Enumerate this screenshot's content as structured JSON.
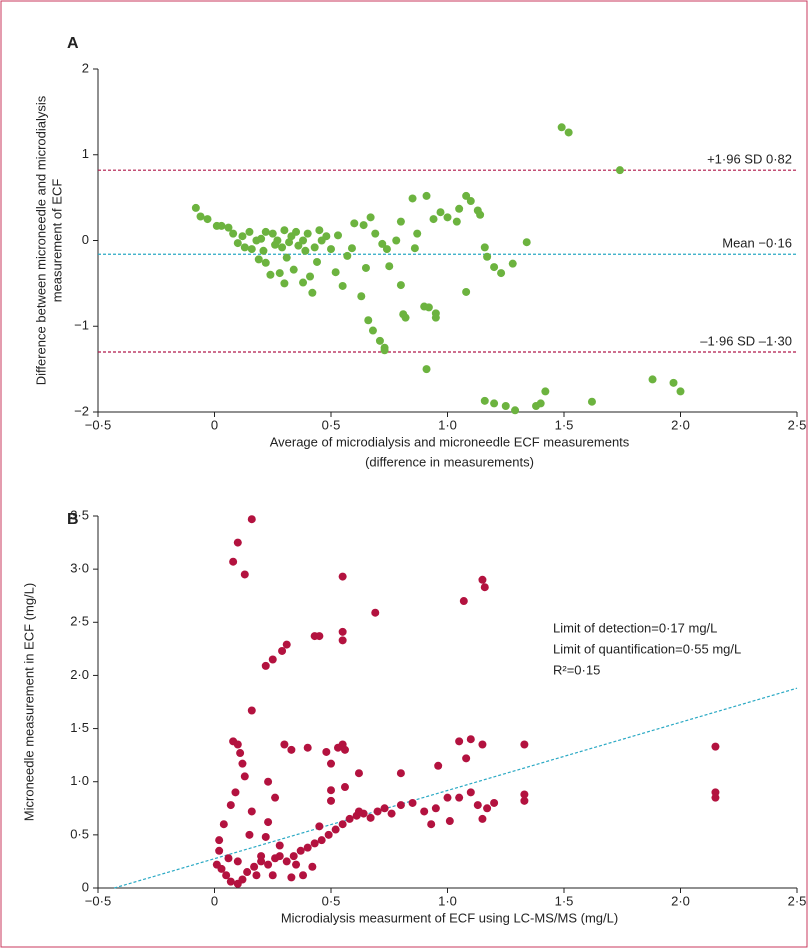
{
  "chart_data": [
    {
      "type": "scatter",
      "panel": "A",
      "x_label": [
        "Average of microdialysis and microneedle ECF measurements",
        "(difference in measurements)"
      ],
      "y_label": [
        "Difference between microneedle and microdialysis",
        "measurement of ECF"
      ],
      "xlim": [
        -0.5,
        2.5
      ],
      "ylim": [
        -2,
        2
      ],
      "xticks": [
        {
          "value": -0.5,
          "label": "−0·5"
        },
        0,
        {
          "value": 0.5,
          "label": "0·5"
        },
        {
          "value": 1,
          "label": "1·0"
        },
        {
          "value": 1.5,
          "label": "1·5"
        },
        {
          "value": 2,
          "label": "2·0"
        },
        {
          "value": 2.5,
          "label": "2·5"
        }
      ],
      "yticks": [
        {
          "value": -2,
          "label": "−2"
        },
        {
          "value": -1,
          "label": "−1"
        },
        0,
        1,
        2
      ],
      "color": "#6cb33f",
      "hlines": [
        {
          "value": 0.82,
          "label": "+1·96 SD 0·82",
          "color": "#b0174a"
        },
        {
          "value": -0.16,
          "label": "Mean −0·16",
          "color": "#2aa9c4"
        },
        {
          "value": -1.3,
          "label": "–1·96 SD –1·30",
          "color": "#b0174a"
        }
      ],
      "x": [
        1.49,
        1.52,
        1.74,
        1.16,
        1.2,
        1.25,
        1.29,
        1.38,
        1.4,
        1.42,
        1.62,
        1.88,
        1.97,
        2.0,
        0.91,
        0.73,
        0.73,
        0.66,
        0.68,
        0.71,
        0.82,
        0.81,
        0.9,
        0.92,
        0.95,
        0.95,
        1.17,
        1.16,
        1.2,
        1.23,
        1.28,
        1.34,
        1.08,
        1.1,
        1.14,
        1.05,
        1.04,
        1.0,
        0.97,
        0.94,
        0.91,
        0.85,
        0.87,
        0.86,
        0.8,
        0.78,
        0.74,
        0.72,
        0.8,
        0.75,
        0.69,
        0.67,
        0.65,
        0.63,
        0.57,
        0.59,
        0.55,
        0.52,
        0.5,
        0.46,
        0.44,
        0.42,
        0.41,
        0.38,
        0.34,
        0.3,
        0.31,
        0.28,
        0.24,
        0.22,
        0.21,
        0.19,
        0.16,
        0.1,
        0.06,
        0.03,
        0.01,
        -0.03,
        -0.06,
        -0.08,
        0.12,
        0.15,
        0.2,
        0.25,
        0.27,
        0.3,
        0.33,
        0.35,
        0.38,
        0.4,
        0.45,
        0.48,
        0.53,
        0.6,
        0.64,
        0.18,
        0.22,
        0.26,
        0.29,
        0.32,
        0.36,
        0.39,
        0.43,
        0.13,
        0.08,
        1.08,
        1.13
      ],
      "values": [
        1.32,
        1.26,
        0.82,
        -1.87,
        -1.9,
        -1.93,
        -1.98,
        -1.93,
        -1.9,
        -1.76,
        -1.88,
        -1.62,
        -1.66,
        -1.76,
        -1.5,
        -1.28,
        -1.25,
        -0.93,
        -1.05,
        -1.17,
        -0.9,
        -0.86,
        -0.77,
        -0.78,
        -0.85,
        -0.9,
        -0.19,
        -0.08,
        -0.31,
        -0.38,
        -0.27,
        -0.02,
        0.52,
        0.46,
        0.3,
        0.37,
        0.22,
        0.27,
        0.33,
        0.25,
        0.52,
        0.49,
        0.08,
        -0.09,
        0.22,
        0.0,
        -0.1,
        -0.04,
        -0.52,
        -0.3,
        0.08,
        0.27,
        -0.32,
        -0.65,
        -0.18,
        -0.09,
        -0.53,
        -0.37,
        -0.1,
        0.0,
        -0.25,
        -0.61,
        -0.42,
        -0.49,
        -0.34,
        -0.5,
        -0.2,
        -0.38,
        -0.4,
        -0.26,
        -0.12,
        -0.22,
        -0.1,
        -0.03,
        0.15,
        0.17,
        0.17,
        0.25,
        0.28,
        0.38,
        0.05,
        0.1,
        0.02,
        0.08,
        0.0,
        0.12,
        0.05,
        0.1,
        0.0,
        0.08,
        0.12,
        0.05,
        0.06,
        0.2,
        0.18,
        0.0,
        0.1,
        -0.05,
        -0.08,
        -0.02,
        -0.06,
        -0.12,
        -0.08,
        -0.08,
        0.08,
        -0.6,
        0.35
      ]
    },
    {
      "type": "scatter",
      "panel": "B",
      "x_label": [
        "Microdialysis measurment of ECF using LC-MS/MS (mg/L)"
      ],
      "y_label": [
        "Microneedle measurement in ECF (mg/L)"
      ],
      "xlim": [
        -0.5,
        2.5
      ],
      "ylim": [
        0,
        3.5
      ],
      "xticks": [
        {
          "value": -0.5,
          "label": "−0·5"
        },
        0,
        {
          "value": 0.5,
          "label": "0·5"
        },
        {
          "value": 1,
          "label": "1·0"
        },
        {
          "value": 1.5,
          "label": "1·5"
        },
        {
          "value": 2,
          "label": "2·0"
        },
        {
          "value": 2.5,
          "label": "2·5"
        }
      ],
      "yticks": [
        0,
        {
          "value": 0.5,
          "label": "0·5"
        },
        {
          "value": 1,
          "label": "1·0"
        },
        {
          "value": 1.5,
          "label": "1·5"
        },
        {
          "value": 2,
          "label": "2·0"
        },
        {
          "value": 2.5,
          "label": "2·5"
        },
        {
          "value": 3,
          "label": "3·0"
        },
        {
          "value": 3.5,
          "label": "3·5"
        }
      ],
      "color": "#b3123f",
      "annotations": [
        "Limit of detection=0·17 mg/L",
        "Limit of quantification=0·55 mg/L",
        "R²=0·15"
      ],
      "trend_line": {
        "x": [
          -0.43,
          2.5
        ],
        "y": [
          0,
          1.88
        ],
        "color": "#2aa9c4"
      },
      "x": [
        0.08,
        0.1,
        0.13,
        0.16,
        0.55,
        0.43,
        0.45,
        0.55,
        0.55,
        0.69,
        1.07,
        1.15,
        1.16,
        0.29,
        0.31,
        0.22,
        0.25,
        0.16,
        0.08,
        0.1,
        0.11,
        0.12,
        0.13,
        0.09,
        0.16,
        0.07,
        0.04,
        0.02,
        0.02,
        0.01,
        0.03,
        0.05,
        0.07,
        0.1,
        0.12,
        0.14,
        0.17,
        0.2,
        0.23,
        0.26,
        0.28,
        0.31,
        0.34,
        0.37,
        0.4,
        0.43,
        0.46,
        0.49,
        0.52,
        0.55,
        0.58,
        0.61,
        0.64,
        0.67,
        0.7,
        0.73,
        0.76,
        0.8,
        0.85,
        0.9,
        0.95,
        1.0,
        1.05,
        1.1,
        1.13,
        1.15,
        1.17,
        1.2,
        1.33,
        1.33,
        1.33,
        1.15,
        1.1,
        1.05,
        1.08,
        0.96,
        0.8,
        0.62,
        0.56,
        0.53,
        0.55,
        0.5,
        0.48,
        0.4,
        0.33,
        0.3,
        0.23,
        0.26,
        0.23,
        0.22,
        0.28,
        0.33,
        0.38,
        0.45,
        0.5,
        0.56,
        0.5,
        0.62,
        0.15,
        0.06,
        0.18,
        0.25,
        0.1,
        2.15,
        2.15,
        2.15,
        1.01,
        0.93,
        0.2,
        0.35,
        0.42
      ],
      "values": [
        3.07,
        3.25,
        2.95,
        3.47,
        2.93,
        2.37,
        2.37,
        2.41,
        2.33,
        2.59,
        2.7,
        2.9,
        2.83,
        2.23,
        2.29,
        2.09,
        2.15,
        1.67,
        1.38,
        1.35,
        1.27,
        1.17,
        1.05,
        0.9,
        0.72,
        0.78,
        0.6,
        0.45,
        0.35,
        0.22,
        0.18,
        0.12,
        0.06,
        0.04,
        0.08,
        0.15,
        0.2,
        0.25,
        0.22,
        0.28,
        0.3,
        0.25,
        0.3,
        0.35,
        0.38,
        0.42,
        0.45,
        0.5,
        0.55,
        0.6,
        0.65,
        0.68,
        0.7,
        0.66,
        0.72,
        0.75,
        0.7,
        0.78,
        0.8,
        0.72,
        0.75,
        0.85,
        0.85,
        0.9,
        0.78,
        0.65,
        0.75,
        0.8,
        0.88,
        0.82,
        1.35,
        1.35,
        1.4,
        1.38,
        1.22,
        1.15,
        1.08,
        1.08,
        1.3,
        1.32,
        1.35,
        1.17,
        1.28,
        1.32,
        1.3,
        1.35,
        1.0,
        0.85,
        0.62,
        0.48,
        0.4,
        0.1,
        0.12,
        0.58,
        0.92,
        0.95,
        0.82,
        0.72,
        0.5,
        0.28,
        0.12,
        0.12,
        0.25,
        1.33,
        0.9,
        0.85,
        0.63,
        0.6,
        0.3,
        0.22,
        0.2
      ]
    }
  ]
}
